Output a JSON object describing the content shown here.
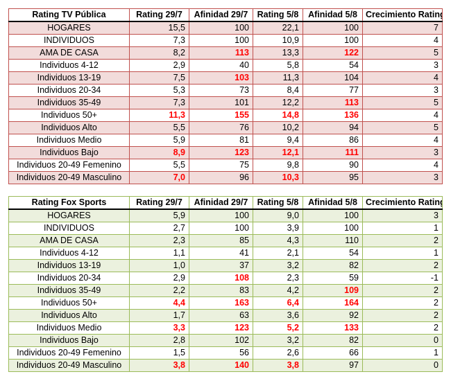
{
  "tables": [
    {
      "header": [
        "Rating TV Pública",
        "Rating 29/7",
        "Afinidad 29/7",
        "Rating 5/8",
        "Afinidad 5/8",
        "Crecimiento Rating"
      ],
      "rows": [
        {
          "cells": [
            "HOGARES",
            "15,5",
            "100",
            "22,1",
            "100",
            "7"
          ],
          "hi": []
        },
        {
          "cells": [
            "INDIVIDUOS",
            "7,3",
            "100",
            "10,9",
            "100",
            "4"
          ],
          "hi": []
        },
        {
          "cells": [
            "AMA DE CASA",
            "8,2",
            "113",
            "13,3",
            "122",
            "5"
          ],
          "hi": [
            2,
            4
          ]
        },
        {
          "cells": [
            "Individuos 4-12",
            "2,9",
            "40",
            "5,8",
            "54",
            "3"
          ],
          "hi": []
        },
        {
          "cells": [
            "Individuos 13-19",
            "7,5",
            "103",
            "11,3",
            "104",
            "4"
          ],
          "hi": [
            2
          ]
        },
        {
          "cells": [
            "Individuos 20-34",
            "5,3",
            "73",
            "8,4",
            "77",
            "3"
          ],
          "hi": []
        },
        {
          "cells": [
            "Individuos 35-49",
            "7,3",
            "101",
            "12,2",
            "113",
            "5"
          ],
          "hi": [
            4
          ]
        },
        {
          "cells": [
            "Individuos 50+",
            "11,3",
            "155",
            "14,8",
            "136",
            "4"
          ],
          "hi": [
            1,
            2,
            3,
            4
          ]
        },
        {
          "cells": [
            "Individuos Alto",
            "5,5",
            "76",
            "10,2",
            "94",
            "5"
          ],
          "hi": []
        },
        {
          "cells": [
            "Individuos Medio",
            "5,9",
            "81",
            "9,4",
            "86",
            "4"
          ],
          "hi": []
        },
        {
          "cells": [
            "Individuos Bajo",
            "8,9",
            "123",
            "12,1",
            "111",
            "3"
          ],
          "hi": [
            1,
            2,
            3,
            4
          ]
        },
        {
          "cells": [
            "Individuos 20-49 Femenino",
            "5,5",
            "75",
            "9,8",
            "90",
            "4"
          ],
          "hi": []
        },
        {
          "cells": [
            "Individuos 20-49 Masculino",
            "7,0",
            "96",
            "10,3",
            "95",
            "3"
          ],
          "hi": [
            1,
            3
          ]
        }
      ]
    },
    {
      "header": [
        "Rating Fox Sports",
        "Rating 29/7",
        "Afinidad 29/7",
        "Rating 5/8",
        "Afinidad 5/8",
        "Crecimiento Rating"
      ],
      "rows": [
        {
          "cells": [
            "HOGARES",
            "5,9",
            "100",
            "9,0",
            "100",
            "3"
          ],
          "hi": []
        },
        {
          "cells": [
            "INDIVIDUOS",
            "2,7",
            "100",
            "3,9",
            "100",
            "1"
          ],
          "hi": []
        },
        {
          "cells": [
            "AMA DE CASA",
            "2,3",
            "85",
            "4,3",
            "110",
            "2"
          ],
          "hi": []
        },
        {
          "cells": [
            "Individuos 4-12",
            "1,1",
            "41",
            "2,1",
            "54",
            "1"
          ],
          "hi": []
        },
        {
          "cells": [
            "Individuos 13-19",
            "1,0",
            "37",
            "3,2",
            "82",
            "2"
          ],
          "hi": []
        },
        {
          "cells": [
            "Individuos 20-34",
            "2,9",
            "108",
            "2,3",
            "59",
            "-1"
          ],
          "hi": [
            2
          ]
        },
        {
          "cells": [
            "Individuos 35-49",
            "2,2",
            "83",
            "4,2",
            "109",
            "2"
          ],
          "hi": [
            4
          ]
        },
        {
          "cells": [
            "Individuos 50+",
            "4,4",
            "163",
            "6,4",
            "164",
            "2"
          ],
          "hi": [
            1,
            2,
            3,
            4
          ]
        },
        {
          "cells": [
            "Individuos Alto",
            "1,7",
            "63",
            "3,6",
            "92",
            "2"
          ],
          "hi": []
        },
        {
          "cells": [
            "Individuos Medio",
            "3,3",
            "123",
            "5,2",
            "133",
            "2"
          ],
          "hi": [
            1,
            2,
            3,
            4
          ]
        },
        {
          "cells": [
            "Individuos Bajo",
            "2,8",
            "102",
            "3,2",
            "82",
            "0"
          ],
          "hi": []
        },
        {
          "cells": [
            "Individuos 20-49 Femenino",
            "1,5",
            "56",
            "2,6",
            "66",
            "1"
          ],
          "hi": []
        },
        {
          "cells": [
            "Individuos 20-49 Masculino",
            "3,8",
            "140",
            "3,8",
            "97",
            "0"
          ],
          "hi": [
            1,
            2,
            3
          ]
        }
      ]
    }
  ]
}
